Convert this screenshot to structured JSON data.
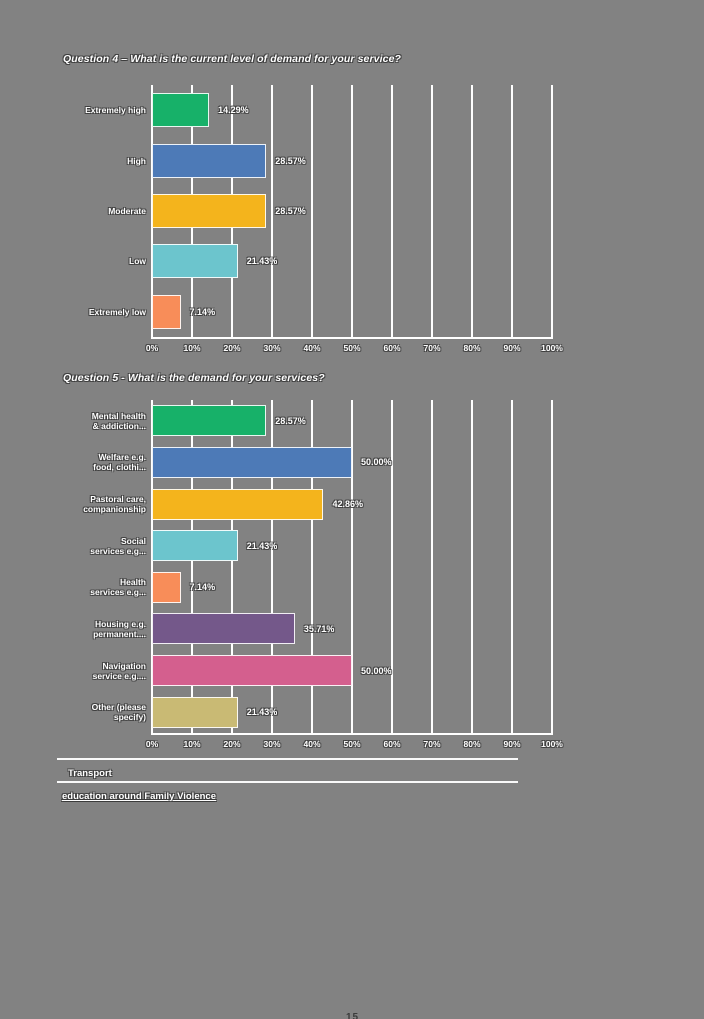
{
  "page": {
    "background": "#828282",
    "page_number": "15"
  },
  "chart_data": [
    {
      "type": "bar",
      "orientation": "horizontal",
      "title": "Question 4 – What is the current level of demand for your service?",
      "categories": [
        "Extremely high",
        "High",
        "Moderate",
        "Low",
        "Extremely low"
      ],
      "values": [
        14.29,
        28.57,
        28.57,
        21.43,
        7.14
      ],
      "value_labels": [
        "14.29%",
        "28.57%",
        "28.57%",
        "21.43%",
        "7.14%"
      ],
      "bar_colors": [
        "#17B169",
        "#4D7AB7",
        "#F4B41C",
        "#6CC5CD",
        "#F88D59"
      ],
      "x_ticks": [
        "0%",
        "10%",
        "20%",
        "30%",
        "40%",
        "50%",
        "60%",
        "70%",
        "80%",
        "90%",
        "100%"
      ],
      "xlim": [
        0,
        100
      ],
      "grid": true,
      "grid_color": "#FFFFFF",
      "legend": "none"
    },
    {
      "type": "bar",
      "orientation": "horizontal",
      "title": "Question 5 - What is the demand for your services?",
      "categories": [
        "Mental health\n& addiction...",
        "Welfare e.g.\nfood, clothi...",
        "Pastoral care,\ncompanionship",
        "Social\nservices e.g...",
        "Health\nservices e.g...",
        "Housing e.g.\npermanent....",
        "Navigation\nservice e.g....",
        "Other (please\nspecify)"
      ],
      "values": [
        28.57,
        50.0,
        42.86,
        21.43,
        7.14,
        35.71,
        50.0,
        21.43
      ],
      "value_labels": [
        "28.57%",
        "50.00%",
        "42.86%",
        "21.43%",
        "7.14%",
        "35.71%",
        "50.00%",
        "21.43%"
      ],
      "bar_colors": [
        "#17B169",
        "#4D7AB7",
        "#F4B41C",
        "#6CC5CD",
        "#F88D59",
        "#74588A",
        "#D45F8E",
        "#C9BA74"
      ],
      "x_ticks": [
        "0%",
        "10%",
        "20%",
        "30%",
        "40%",
        "50%",
        "60%",
        "70%",
        "80%",
        "90%",
        "100%"
      ],
      "xlim": [
        0,
        100
      ],
      "grid": true,
      "grid_color": "#FFFFFF",
      "legend": "none"
    }
  ],
  "notes": [
    {
      "text": "Transport",
      "underline": false
    },
    {
      "text": "education around Family Violence",
      "underline": true
    }
  ]
}
